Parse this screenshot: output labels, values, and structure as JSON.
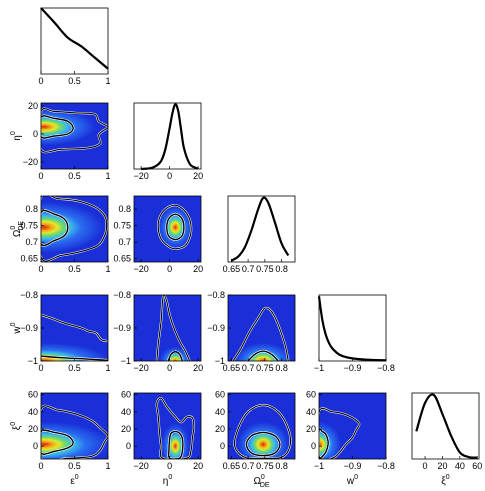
{
  "chart_data": {
    "type": "triangle-plot",
    "parameters": [
      {
        "key": "epsilon",
        "sym": "ε",
        "sup": "0",
        "sub": "",
        "range": [
          0,
          1
        ],
        "ticks": [
          "0",
          "0.5",
          "1"
        ],
        "tickvals": [
          0,
          0.5,
          1
        ]
      },
      {
        "key": "eta",
        "sym": "η",
        "sup": "0",
        "sub": "",
        "range": [
          -25,
          22
        ],
        "ticks": [
          "−20",
          "0",
          "20"
        ],
        "tickvals": [
          -20,
          0,
          20
        ]
      },
      {
        "key": "omega",
        "sym": "Ω",
        "sup": "0",
        "sub": "DE",
        "range": [
          0.64,
          0.84
        ],
        "ticks": [
          "0.65",
          "0.7",
          "0.75",
          "0.8"
        ],
        "tickvals": [
          0.65,
          0.7,
          0.75,
          0.8
        ]
      },
      {
        "key": "w",
        "sym": "w",
        "sup": "0",
        "sub": "",
        "range": [
          -1,
          -0.8
        ],
        "ticks": [
          "−1",
          "−0.9",
          "−0.8"
        ],
        "tickvals": [
          -1,
          -0.9,
          -0.8
        ]
      },
      {
        "key": "xi",
        "sym": "ξ",
        "sup": "0",
        "sub": "",
        "range": [
          -15,
          62
        ],
        "ticks": [
          "0",
          "20",
          "40",
          "60"
        ],
        "tickvals": [
          0,
          20,
          40,
          60
        ]
      }
    ],
    "diagonal": [
      {
        "param": "epsilon",
        "x": [
          0,
          0.2,
          0.4,
          0.6,
          0.8,
          1.0
        ],
        "y": [
          1.0,
          0.78,
          0.55,
          0.42,
          0.25,
          0.08
        ]
      },
      {
        "param": "eta",
        "x": [
          -20,
          -14,
          -10,
          -6,
          -3,
          0,
          2,
          4,
          6,
          8,
          10,
          14,
          18,
          20
        ],
        "y": [
          0,
          0.01,
          0.04,
          0.12,
          0.3,
          0.62,
          0.85,
          0.98,
          0.88,
          0.6,
          0.32,
          0.08,
          0.02,
          0.01
        ]
      },
      {
        "param": "omega",
        "x": [
          0.65,
          0.67,
          0.69,
          0.71,
          0.73,
          0.745,
          0.76,
          0.78,
          0.8,
          0.82
        ],
        "y": [
          0.02,
          0.08,
          0.22,
          0.48,
          0.8,
          0.97,
          0.9,
          0.6,
          0.28,
          0.1
        ]
      },
      {
        "param": "w",
        "x": [
          -1,
          -0.99,
          -0.98,
          -0.97,
          -0.96,
          -0.94,
          -0.92,
          -0.9,
          -0.87,
          -0.84,
          -0.8
        ],
        "y": [
          0.98,
          0.62,
          0.4,
          0.27,
          0.19,
          0.1,
          0.06,
          0.04,
          0.025,
          0.015,
          0.01
        ]
      },
      {
        "param": "xi",
        "x": [
          -10,
          0,
          10,
          20,
          30,
          40,
          50,
          60
        ],
        "y": [
          0.42,
          0.85,
          0.97,
          0.68,
          0.35,
          0.1,
          0.03,
          0.02
        ]
      }
    ],
    "joint": [
      {
        "x": "epsilon",
        "y": "eta",
        "peak": [
          0.05,
          5
        ],
        "sigma": [
          0.35,
          6
        ],
        "contour_68": [
          [
            0,
            -2
          ],
          [
            0.2,
            -1.5
          ],
          [
            0.4,
            0
          ],
          [
            0.48,
            4
          ],
          [
            0.4,
            9
          ],
          [
            0.2,
            11
          ],
          [
            0,
            12
          ]
        ],
        "contour_95": [
          [
            0,
            -11
          ],
          [
            0.3,
            -11
          ],
          [
            0.7,
            -10
          ],
          [
            0.88,
            -7
          ],
          [
            0.86,
            -1
          ],
          [
            0.92,
            2
          ],
          [
            1,
            5
          ],
          [
            0.86,
            9
          ],
          [
            0.8,
            14
          ],
          [
            0.5,
            15
          ],
          [
            0.2,
            16
          ],
          [
            0,
            16
          ]
        ]
      },
      {
        "x": "epsilon",
        "y": "omega",
        "peak": [
          0.05,
          0.745
        ],
        "sigma": [
          0.4,
          0.035
        ],
        "contour_68": [
          [
            0,
            0.695
          ],
          [
            0.2,
            0.705
          ],
          [
            0.35,
            0.72
          ],
          [
            0.4,
            0.745
          ],
          [
            0.35,
            0.77
          ],
          [
            0.2,
            0.785
          ],
          [
            0,
            0.79
          ]
        ],
        "contour_95": [
          [
            0,
            0.655
          ],
          [
            0.3,
            0.66
          ],
          [
            0.6,
            0.672
          ],
          [
            0.85,
            0.69
          ],
          [
            0.95,
            0.72
          ],
          [
            0.98,
            0.75
          ],
          [
            0.95,
            0.78
          ],
          [
            0.82,
            0.805
          ],
          [
            0.55,
            0.825
          ],
          [
            0.25,
            0.832
          ],
          [
            0,
            0.835
          ]
        ]
      },
      {
        "x": "eta",
        "y": "omega",
        "peak": [
          4,
          0.745
        ],
        "sigma": [
          5.5,
          0.03
        ],
        "contour_68": [
          [
            4,
            0.708
          ],
          [
            8.5,
            0.718
          ],
          [
            10,
            0.745
          ],
          [
            8.5,
            0.772
          ],
          [
            4,
            0.785
          ],
          [
            -0.5,
            0.772
          ],
          [
            -2,
            0.745
          ],
          [
            -0.5,
            0.718
          ]
        ],
        "contour_95": [
          [
            4,
            0.68
          ],
          [
            11,
            0.69
          ],
          [
            14.5,
            0.72
          ],
          [
            15,
            0.75
          ],
          [
            13,
            0.78
          ],
          [
            8,
            0.805
          ],
          [
            3,
            0.812
          ],
          [
            -3,
            0.8
          ],
          [
            -7,
            0.775
          ],
          [
            -8,
            0.745
          ],
          [
            -6,
            0.71
          ],
          [
            -1,
            0.688
          ]
        ]
      },
      {
        "x": "epsilon",
        "y": "w",
        "peak": [
          0.05,
          -1.0
        ],
        "sigma": [
          0.45,
          0.025
        ],
        "contour_68": [
          [
            0,
            -0.985
          ],
          [
            0.3,
            -0.99
          ],
          [
            0.6,
            -0.993
          ],
          [
            0.85,
            -0.996
          ],
          [
            1,
            -0.998
          ]
        ],
        "contour_95": [
          [
            0,
            -0.86
          ],
          [
            0.15,
            -0.87
          ],
          [
            0.35,
            -0.885
          ],
          [
            0.6,
            -0.9
          ],
          [
            0.72,
            -0.91
          ],
          [
            0.82,
            -0.915
          ],
          [
            0.9,
            -0.935
          ],
          [
            1,
            -0.94
          ]
        ]
      },
      {
        "x": "eta",
        "y": "w",
        "peak": [
          4,
          -1.0
        ],
        "sigma": [
          5,
          0.02
        ],
        "contour_68": [
          [
            -1,
            -1
          ],
          [
            1,
            -0.98
          ],
          [
            4,
            -0.972
          ],
          [
            7,
            -0.98
          ],
          [
            9,
            -1
          ]
        ],
        "contour_95": [
          [
            -9,
            -1
          ],
          [
            -8,
            -0.95
          ],
          [
            -6,
            -0.88
          ],
          [
            -5,
            -0.82
          ],
          [
            -4,
            -0.8
          ],
          [
            -2,
            -0.82
          ],
          [
            0,
            -0.86
          ],
          [
            3,
            -0.9
          ],
          [
            7,
            -0.94
          ],
          [
            11,
            -0.97
          ],
          [
            14,
            -1
          ]
        ]
      },
      {
        "x": "omega",
        "y": "w",
        "peak": [
          0.745,
          -1.0
        ],
        "sigma": [
          0.04,
          0.025
        ],
        "contour_68": [
          [
            0.7,
            -1
          ],
          [
            0.72,
            -0.98
          ],
          [
            0.745,
            -0.97
          ],
          [
            0.77,
            -0.98
          ],
          [
            0.79,
            -1
          ]
        ],
        "contour_95": [
          [
            0.655,
            -1
          ],
          [
            0.68,
            -0.96
          ],
          [
            0.705,
            -0.91
          ],
          [
            0.73,
            -0.87
          ],
          [
            0.75,
            -0.84
          ],
          [
            0.77,
            -0.85
          ],
          [
            0.79,
            -0.89
          ],
          [
            0.81,
            -0.95
          ],
          [
            0.82,
            -1
          ]
        ]
      },
      {
        "x": "epsilon",
        "y": "xi",
        "peak": [
          0.05,
          2
        ],
        "sigma": [
          0.45,
          12
        ],
        "contour_68": [
          [
            0,
            -8
          ],
          [
            0.2,
            -6
          ],
          [
            0.4,
            -2
          ],
          [
            0.48,
            4
          ],
          [
            0.4,
            12
          ],
          [
            0.2,
            16
          ],
          [
            0,
            17
          ]
        ],
        "contour_95": [
          [
            0,
            -14
          ],
          [
            0.4,
            -14
          ],
          [
            0.75,
            -12
          ],
          [
            0.88,
            -5
          ],
          [
            0.95,
            5
          ],
          [
            1,
            12
          ],
          [
            0.9,
            20
          ],
          [
            0.75,
            30
          ],
          [
            0.5,
            38
          ],
          [
            0.25,
            42
          ],
          [
            0,
            43
          ]
        ]
      },
      {
        "x": "eta",
        "y": "xi",
        "peak": [
          4,
          0
        ],
        "sigma": [
          4.5,
          12
        ],
        "contour_68": [
          [
            0,
            -14
          ],
          [
            7,
            -14
          ],
          [
            9,
            -5
          ],
          [
            9,
            8
          ],
          [
            7,
            15
          ],
          [
            4,
            17
          ],
          [
            1,
            15
          ],
          [
            0,
            8
          ],
          [
            -0.5,
            -5
          ]
        ],
        "contour_95": [
          [
            -5,
            -14
          ],
          [
            12,
            -14
          ],
          [
            15,
            -5
          ],
          [
            16,
            10
          ],
          [
            17,
            22
          ],
          [
            16,
            33
          ],
          [
            12,
            34
          ],
          [
            8,
            28
          ],
          [
            3,
            36
          ],
          [
            -2,
            46
          ],
          [
            -6,
            56
          ],
          [
            -9,
            50
          ],
          [
            -8,
            35
          ],
          [
            -7,
            15
          ],
          [
            -6,
            0
          ]
        ]
      },
      {
        "x": "omega",
        "y": "xi",
        "peak": [
          0.745,
          2
        ],
        "sigma": [
          0.035,
          12
        ],
        "contour_68": [
          [
            0.745,
            -11
          ],
          [
            0.78,
            -8
          ],
          [
            0.795,
            2
          ],
          [
            0.78,
            12
          ],
          [
            0.745,
            16
          ],
          [
            0.71,
            12
          ],
          [
            0.695,
            2
          ],
          [
            0.71,
            -8
          ]
        ],
        "contour_95": [
          [
            0.745,
            -14
          ],
          [
            0.8,
            -13
          ],
          [
            0.825,
            0
          ],
          [
            0.82,
            20
          ],
          [
            0.79,
            40
          ],
          [
            0.745,
            48
          ],
          [
            0.7,
            40
          ],
          [
            0.67,
            20
          ],
          [
            0.66,
            0
          ],
          [
            0.69,
            -13
          ]
        ]
      },
      {
        "x": "w",
        "y": "xi",
        "peak": [
          -1.0,
          2
        ],
        "sigma": [
          0.03,
          12
        ],
        "contour_68": [
          [
            -1,
            -12
          ],
          [
            -0.985,
            -10
          ],
          [
            -0.975,
            -2
          ],
          [
            -0.973,
            6
          ],
          [
            -0.98,
            14
          ],
          [
            -0.99,
            17
          ],
          [
            -1,
            18
          ]
        ],
        "contour_95": [
          [
            -1,
            -14
          ],
          [
            -0.96,
            -14
          ],
          [
            -0.94,
            -8
          ],
          [
            -0.92,
            2
          ],
          [
            -0.9,
            10
          ],
          [
            -0.89,
            18
          ],
          [
            -0.88,
            26
          ],
          [
            -0.9,
            33
          ],
          [
            -0.93,
            38
          ],
          [
            -0.96,
            40
          ],
          [
            -1,
            40
          ]
        ]
      }
    ]
  }
}
